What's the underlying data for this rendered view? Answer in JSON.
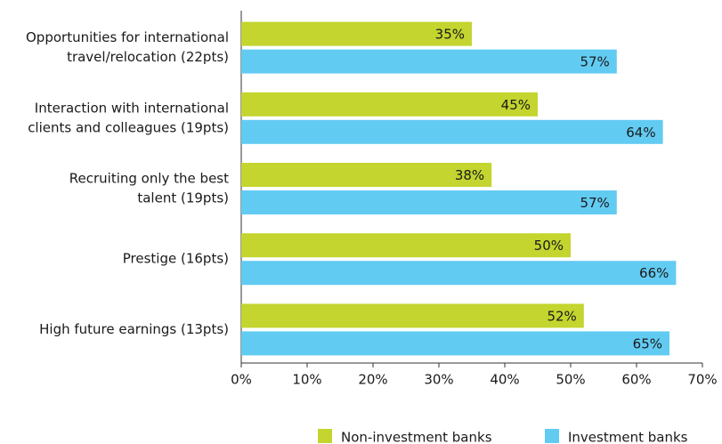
{
  "chart_data": {
    "type": "bar",
    "orientation": "horizontal",
    "categories": [
      [
        "Opportunities for international",
        "travel/relocation (22pts)"
      ],
      [
        "Interaction with international",
        "clients and colleagues (19pts)"
      ],
      [
        "Recruiting only the best",
        "talent (19pts)"
      ],
      [
        "Prestige (16pts)"
      ],
      [
        "High future earnings (13pts)"
      ]
    ],
    "series": [
      {
        "name": "Non-investment banks",
        "color": "#c3d52e",
        "values": [
          35,
          45,
          38,
          50,
          52
        ],
        "value_labels": [
          "35%",
          "45%",
          "38%",
          "50%",
          "52%"
        ]
      },
      {
        "name": "Investment banks",
        "color": "#62cbf2",
        "values": [
          57,
          64,
          57,
          66,
          65
        ],
        "value_labels": [
          "57%",
          "64%",
          "57%",
          "66%",
          "65%"
        ]
      }
    ],
    "xlim": [
      0,
      70
    ],
    "xticks": [
      {
        "value": 0,
        "label": "0%"
      },
      {
        "value": 10,
        "label": "10%"
      },
      {
        "value": 20,
        "label": "20%"
      },
      {
        "value": 30,
        "label": "30%"
      },
      {
        "value": 40,
        "label": "40%"
      },
      {
        "value": 50,
        "label": "50%"
      },
      {
        "value": 60,
        "label": "60%"
      },
      {
        "value": 70,
        "label": "70%"
      }
    ],
    "legend": "bottom"
  }
}
